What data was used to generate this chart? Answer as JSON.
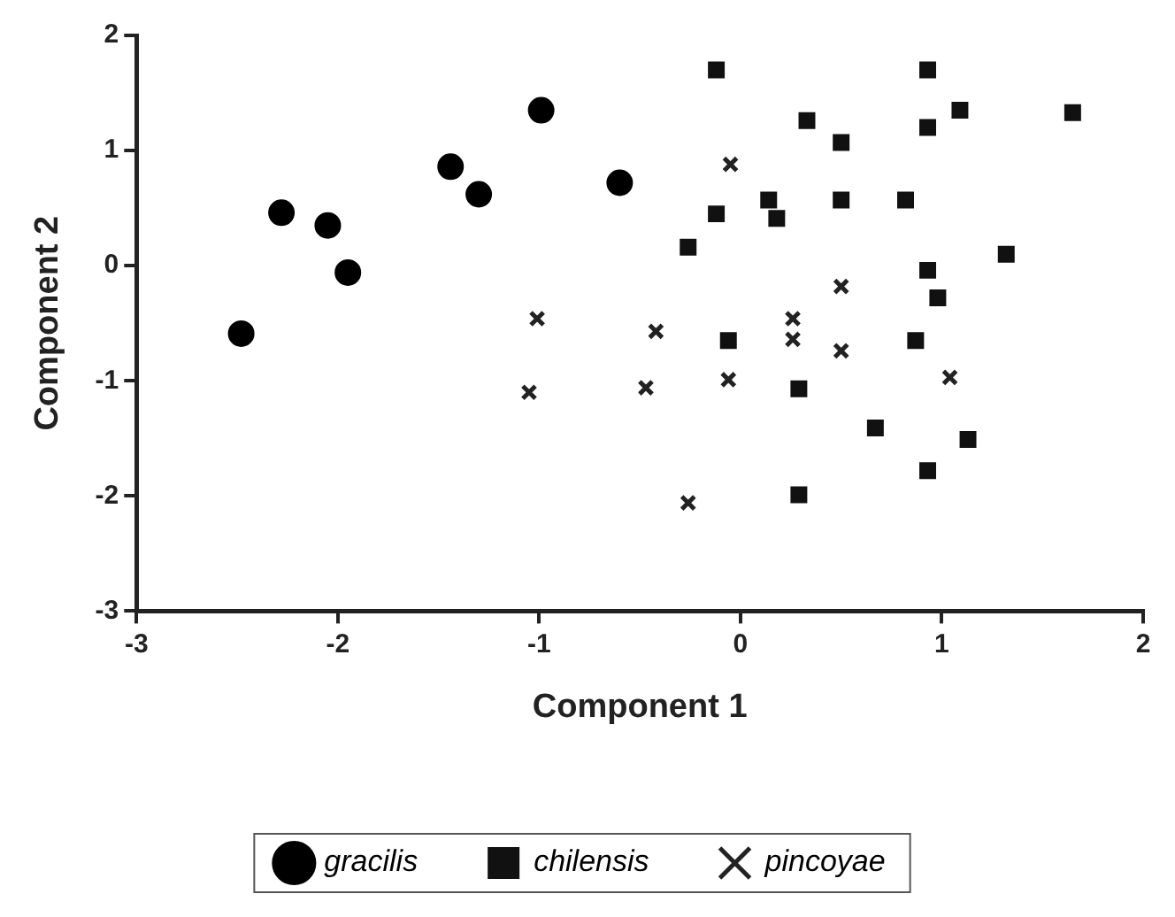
{
  "chart_data": {
    "type": "scatter",
    "xlabel": "Component 1",
    "ylabel": "Component 2",
    "xlim": [
      -3,
      2
    ],
    "ylim": [
      -3,
      2
    ],
    "xticks": [
      -3,
      -2,
      -1,
      0,
      1,
      2
    ],
    "yticks": [
      -3,
      -2,
      -1,
      0,
      1,
      2
    ],
    "grid": false,
    "legend": "bottom",
    "series": [
      {
        "name": "gracilis",
        "color": "#000000",
        "marker": "circle",
        "x": [
          -2.48,
          -2.28,
          -2.05,
          -1.95,
          -1.44,
          -1.3,
          -0.99,
          -0.6
        ],
        "values": [
          -0.59,
          0.46,
          0.35,
          -0.06,
          0.86,
          0.62,
          1.35,
          0.72
        ]
      },
      {
        "name": "chilensis",
        "color": "#111111",
        "marker": "square",
        "x": [
          -0.12,
          0.93,
          1.09,
          1.65,
          0.33,
          0.93,
          0.5,
          0.14,
          0.18,
          0.5,
          0.82,
          -0.12,
          -0.26,
          1.32,
          0.93,
          0.98,
          -0.06,
          0.87,
          0.29,
          0.67,
          1.13,
          0.93,
          0.29
        ],
        "values": [
          1.7,
          1.7,
          1.35,
          1.33,
          1.26,
          1.2,
          1.07,
          0.57,
          0.41,
          0.57,
          0.57,
          0.45,
          0.16,
          0.1,
          -0.04,
          -0.28,
          -0.65,
          -0.65,
          -1.07,
          -1.41,
          -1.51,
          -1.78,
          -1.99
        ]
      },
      {
        "name": "pincoyae",
        "color": "#222222",
        "marker": "cross",
        "x": [
          -1.01,
          -1.05,
          -0.42,
          -0.47,
          -0.05,
          0.5,
          0.26,
          0.26,
          0.5,
          -0.06,
          1.04,
          -0.26
        ],
        "values": [
          -0.46,
          -1.1,
          -0.57,
          -1.06,
          0.88,
          -0.18,
          -0.46,
          -0.64,
          -0.74,
          -0.99,
          -0.97,
          -2.06
        ]
      }
    ]
  }
}
